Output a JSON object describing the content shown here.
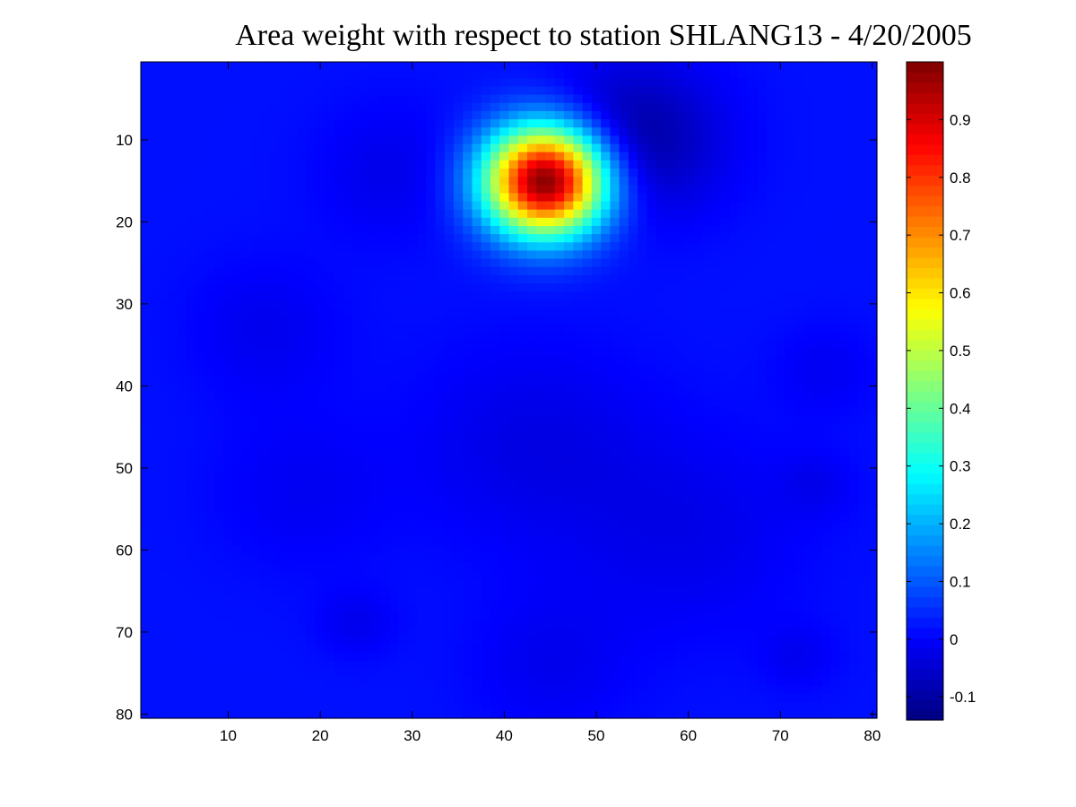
{
  "chart_data": {
    "type": "heatmap",
    "title": "Area weight with respect to station SHLANG13 - 4/20/2005",
    "xlabel": "",
    "ylabel": "",
    "colormap": "jet",
    "grid_size": [
      80,
      80
    ],
    "xlim": [
      0.5,
      80.5
    ],
    "ylim": [
      0.5,
      80.5
    ],
    "y_direction": "reverse",
    "x_ticks": [
      "10",
      "20",
      "30",
      "40",
      "50",
      "60",
      "70",
      "80"
    ],
    "y_ticks": [
      "10",
      "20",
      "30",
      "40",
      "50",
      "60",
      "70",
      "80"
    ],
    "x_tick_values": [
      10,
      20,
      30,
      40,
      50,
      60,
      70,
      80
    ],
    "y_tick_values": [
      10,
      20,
      30,
      40,
      50,
      60,
      70,
      80
    ],
    "color_range": [
      -0.14,
      1.0
    ],
    "colorbar_ticks": [
      "-0.1",
      "0",
      "0.1",
      "0.2",
      "0.3",
      "0.4",
      "0.5",
      "0.6",
      "0.7",
      "0.8",
      "0.9"
    ],
    "colorbar_tick_values": [
      -0.1,
      0,
      0.1,
      0.2,
      0.3,
      0.4,
      0.5,
      0.6,
      0.7,
      0.8,
      0.9
    ],
    "background_value": 0.02,
    "features": [
      {
        "kind": "peak",
        "x": 44.5,
        "y": 15,
        "value": 1.0,
        "spread": 4.6
      },
      {
        "kind": "trough",
        "x": 54,
        "y": 10,
        "value": -0.13,
        "spread": 6.5
      },
      {
        "kind": "trough",
        "x": 28,
        "y": 14,
        "value": -0.04,
        "spread": 6
      },
      {
        "kind": "trough",
        "x": 14,
        "y": 33,
        "value": -0.035,
        "spread": 6
      },
      {
        "kind": "trough",
        "x": 18,
        "y": 53,
        "value": -0.03,
        "spread": 7
      },
      {
        "kind": "trough",
        "x": 43,
        "y": 47,
        "value": -0.045,
        "spread": 9
      },
      {
        "kind": "trough",
        "x": 60,
        "y": 58,
        "value": -0.04,
        "spread": 9
      },
      {
        "kind": "trough",
        "x": 45,
        "y": 74,
        "value": -0.035,
        "spread": 6
      },
      {
        "kind": "trough",
        "x": 24,
        "y": 69,
        "value": -0.035,
        "spread": 3
      },
      {
        "kind": "trough",
        "x": 72,
        "y": 73,
        "value": -0.03,
        "spread": 3
      },
      {
        "kind": "trough",
        "x": 74,
        "y": 52,
        "value": -0.03,
        "spread": 3
      },
      {
        "kind": "trough",
        "x": 75,
        "y": 38,
        "value": -0.03,
        "spread": 4
      }
    ]
  }
}
